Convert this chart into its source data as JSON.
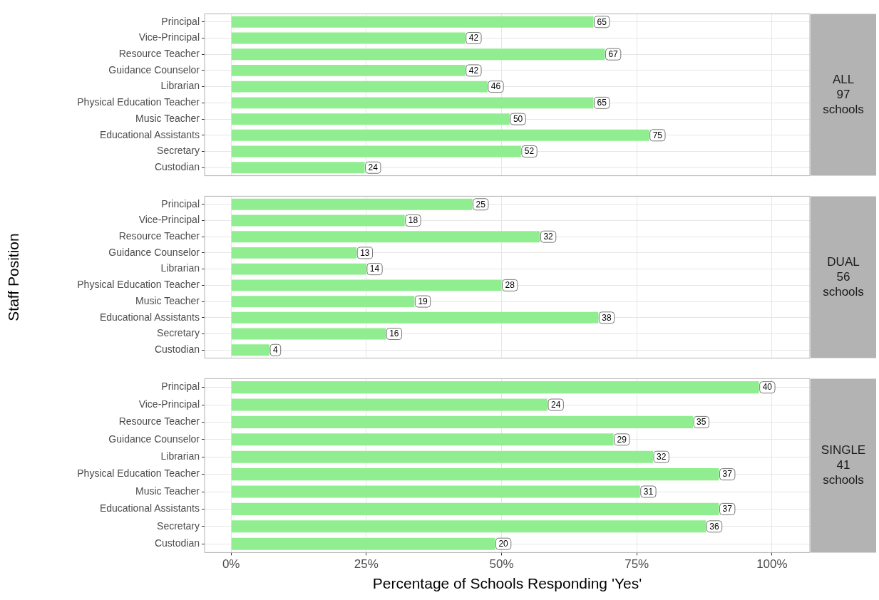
{
  "chart_data": [
    {
      "type": "bar",
      "orientation": "horizontal",
      "categories": [
        "Principal",
        "Vice-Principal",
        "Resource Teacher",
        "Guidance Counselor",
        "Librarian",
        "Physical Education Teacher",
        "Music Teacher",
        "Educational Assistants",
        "Secretary",
        "Custodian"
      ],
      "values": [
        67.0,
        43.3,
        69.1,
        43.3,
        47.4,
        67.0,
        51.5,
        77.3,
        53.6,
        24.7
      ],
      "annotations": [
        "ALL 97 schools",
        {
          "text": "65",
          "x": 67.0,
          "y": "Principal"
        },
        {
          "text": "42",
          "x": 43.3,
          "y": "Vice-Principal"
        },
        {
          "text": "67",
          "x": 69.1,
          "y": "Resource Teacher"
        },
        {
          "text": "42",
          "x": 43.3,
          "y": "Guidance Counselor"
        },
        {
          "text": "46",
          "x": 47.4,
          "y": "Librarian"
        },
        {
          "text": "65",
          "x": 67.0,
          "y": "Physical Education Teacher"
        },
        {
          "text": "50",
          "x": 51.5,
          "y": "Music Teacher"
        },
        {
          "text": "75",
          "x": 77.3,
          "y": "Educational Assistants"
        },
        {
          "text": "52",
          "x": 53.6,
          "y": "Secretary"
        },
        {
          "text": "24",
          "x": 24.7,
          "y": "Custodian"
        }
      ],
      "color": "#90ee90",
      "xlim": [
        -4.9,
        107
      ],
      "xticks": [
        {
          "value": 0,
          "label": null
        },
        {
          "value": 25,
          "label": null
        },
        {
          "value": 50,
          "label": null
        },
        {
          "value": 75,
          "label": null
        },
        {
          "value": 100,
          "label": null
        }
      ],
      "grid": true,
      "tick_labels": "y"
    },
    {
      "type": "bar",
      "orientation": "horizontal",
      "ylabel": "Staff Position",
      "categories": [
        "Principal",
        "Vice-Principal",
        "Resource Teacher",
        "Guidance Counselor",
        "Librarian",
        "Physical Education Teacher",
        "Music Teacher",
        "Educational Assistants",
        "Secretary",
        "Custodian"
      ],
      "values": [
        44.6,
        32.1,
        57.1,
        23.2,
        25.0,
        50.0,
        33.9,
        67.9,
        28.6,
        7.1
      ],
      "annotations": [
        "DUAL 56 schools",
        {
          "text": "25",
          "x": 44.6,
          "y": "Principal"
        },
        {
          "text": "18",
          "x": 32.1,
          "y": "Vice-Principal"
        },
        {
          "text": "32",
          "x": 57.1,
          "y": "Resource Teacher"
        },
        {
          "text": "13",
          "x": 23.2,
          "y": "Guidance Counselor"
        },
        {
          "text": "14",
          "x": 25.0,
          "y": "Librarian"
        },
        {
          "text": "28",
          "x": 50.0,
          "y": "Physical Education Teacher"
        },
        {
          "text": "19",
          "x": 33.9,
          "y": "Music Teacher"
        },
        {
          "text": "38",
          "x": 67.9,
          "y": "Educational Assistants"
        },
        {
          "text": "16",
          "x": 28.6,
          "y": "Secretary"
        },
        {
          "text": "4",
          "x": 7.1,
          "y": "Custodian"
        }
      ],
      "color": "#90ee90",
      "xlim": [
        -4.9,
        107
      ],
      "xticks": [
        {
          "value": 0,
          "label": null
        },
        {
          "value": 25,
          "label": null
        },
        {
          "value": 50,
          "label": null
        },
        {
          "value": 75,
          "label": null
        },
        {
          "value": 100,
          "label": null
        }
      ],
      "grid": true,
      "tick_labels": "y"
    },
    {
      "type": "bar",
      "orientation": "horizontal",
      "xlabel": "Percentage of Schools Responding 'Yes'",
      "categories": [
        "Principal",
        "Vice-Principal",
        "Resource Teacher",
        "Guidance Counselor",
        "Librarian",
        "Physical Education Teacher",
        "Music Teacher",
        "Educational Assistants",
        "Secretary",
        "Custodian"
      ],
      "values": [
        97.6,
        58.5,
        85.4,
        70.7,
        78.0,
        90.2,
        75.6,
        90.2,
        87.8,
        48.8
      ],
      "annotations": [
        "SINGLE 41 schools",
        {
          "text": "40",
          "x": 97.6,
          "y": "Principal"
        },
        {
          "text": "24",
          "x": 58.5,
          "y": "Vice-Principal"
        },
        {
          "text": "35",
          "x": 85.4,
          "y": "Resource Teacher"
        },
        {
          "text": "29",
          "x": 70.7,
          "y": "Guidance Counselor"
        },
        {
          "text": "32",
          "x": 78.0,
          "y": "Librarian"
        },
        {
          "text": "37",
          "x": 90.2,
          "y": "Physical Education Teacher"
        },
        {
          "text": "31",
          "x": 75.6,
          "y": "Music Teacher"
        },
        {
          "text": "37",
          "x": 90.2,
          "y": "Educational Assistants"
        },
        {
          "text": "36",
          "x": 87.8,
          "y": "Secretary"
        },
        {
          "text": "20",
          "x": 48.8,
          "y": "Custodian"
        }
      ],
      "color": "#90ee90",
      "xlim": [
        -4.9,
        107
      ],
      "xticks": [
        {
          "value": 0,
          "label": "0%"
        },
        {
          "value": 25,
          "label": "25%"
        },
        {
          "value": 50,
          "label": "50%"
        },
        {
          "value": 75,
          "label": "75%"
        },
        {
          "value": 100,
          "label": "100%"
        }
      ],
      "grid": true
    }
  ]
}
